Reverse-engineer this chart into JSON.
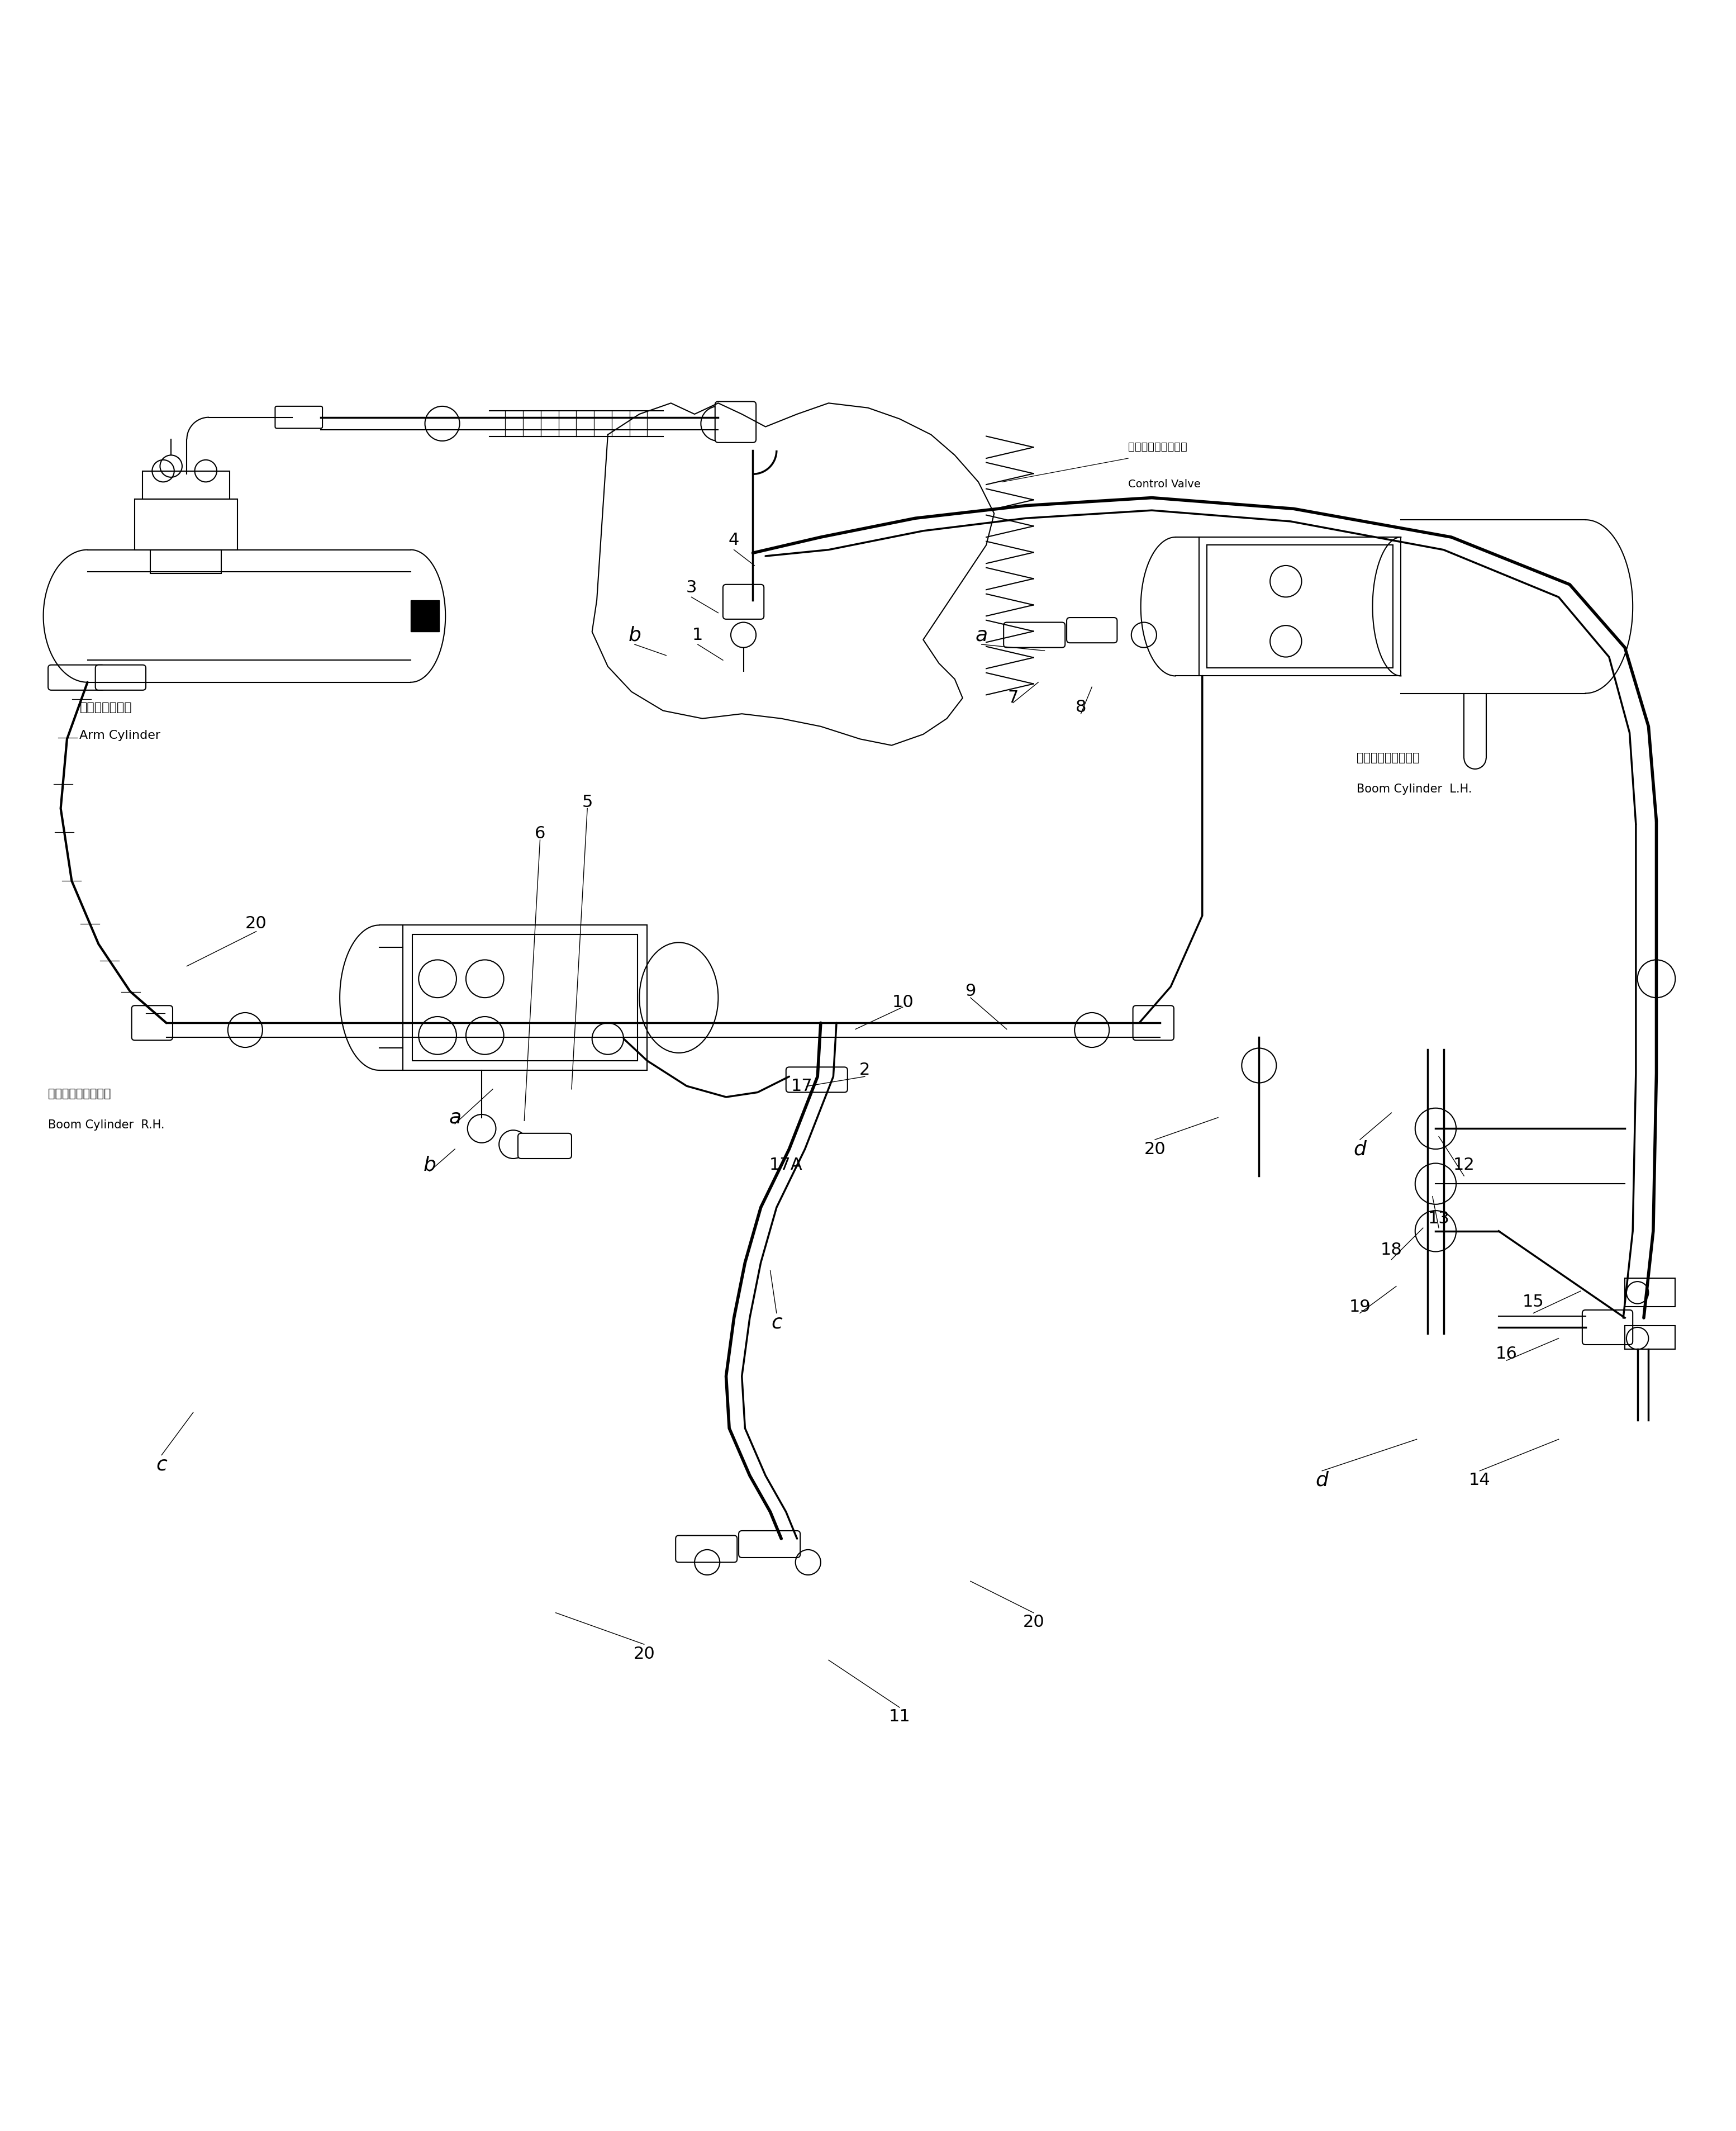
{
  "bg_color": "#ffffff",
  "line_color": "#000000",
  "fig_width": 31.07,
  "fig_height": 38.13,
  "labels": {
    "arm_cylinder_ja": "アームシリンダ",
    "arm_cylinder_en": "Arm Cylinder",
    "boom_cylinder_rh_ja": "ブームシリンダ、右",
    "boom_cylinder_rh_en": "Boom Cylinder  R.H.",
    "boom_cylinder_lh_ja": "ブームシリンダ、左",
    "boom_cylinder_lh_en": "Boom Cylinder  L.H.",
    "control_valve_ja": "コントロールバルブ",
    "control_valve_en": "Control Valve"
  }
}
